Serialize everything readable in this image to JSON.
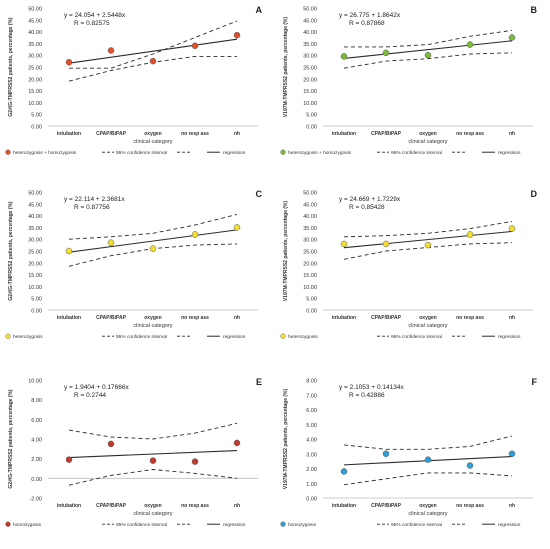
{
  "figure": {
    "x_axis_title": "clinical category",
    "categories": [
      "intubation",
      "CPAP/BiPAP",
      "oxygen",
      "no resp ass",
      "nh"
    ],
    "legend": {
      "ci": "95% confidence interval",
      "regression": "regression"
    },
    "colors": {
      "marker_edge": "#555555",
      "regression": "#2b2b2b",
      "ci": "#2b2b2b"
    }
  },
  "chart_data": [
    {
      "type": "scatter",
      "panel": "A",
      "equation": "y = 24.054 + 2.5448x",
      "r_text": "R = 0.82575",
      "ylabel": "G2#/G-TMPRSS2 patients, percentage (%)",
      "xlabel": "clinical category",
      "categories": [
        "intubation",
        "CPAP/BiPAP",
        "oxygen",
        "no resp ass",
        "nh"
      ],
      "ylim": [
        0,
        50
      ],
      "yticks": [
        "0.00",
        "5.00",
        "10.00",
        "15.00",
        "20.00",
        "25.00",
        "30.00",
        "35.00",
        "40.00",
        "45.00",
        "50.00"
      ],
      "values": [
        27.0,
        32.0,
        27.5,
        34.0,
        38.5
      ],
      "regression": {
        "intercept": 24.054,
        "slope": 2.5448
      },
      "ci_upper": [
        24.5,
        24.5,
        30.5,
        37.5,
        44.5
      ],
      "ci_lower": [
        19.0,
        23.5,
        27.0,
        29.5,
        29.5
      ],
      "series_name": "heterozygosis + homozygosis",
      "marker_color": "#e0502a",
      "legend_position": "bottom"
    },
    {
      "type": "scatter",
      "panel": "B",
      "equation": "y = 26.775 + 1.8642x",
      "r_text": "R = 0.87868",
      "ylabel": "V197M-TMPRSS2 patients, percentage (%)",
      "xlabel": "clinical category",
      "categories": [
        "intubation",
        "CPAP/BiPAP",
        "oxygen",
        "no resp ass",
        "nh"
      ],
      "ylim": [
        0,
        50
      ],
      "yticks": [
        "0.00",
        "5.00",
        "10.00",
        "15.00",
        "20.00",
        "25.00",
        "30.00",
        "35.00",
        "40.00",
        "45.00",
        "50.00"
      ],
      "values": [
        29.5,
        31.0,
        30.0,
        34.5,
        37.5
      ],
      "regression": {
        "intercept": 26.775,
        "slope": 1.8642
      },
      "ci_upper": [
        33.5,
        33.5,
        34.5,
        38.0,
        40.5
      ],
      "ci_lower": [
        24.5,
        27.5,
        28.5,
        30.5,
        31.0
      ],
      "series_name": "heterozygosis + homozygosis",
      "marker_color": "#7dba3a",
      "legend_position": "bottom"
    },
    {
      "type": "scatter",
      "panel": "C",
      "equation": "y = 22.114 + 2.3681x",
      "r_text": "R = 0.87756",
      "ylabel": "G2#/G-TMPRSS2 patients, percentage (%)",
      "xlabel": "clinical category",
      "categories": [
        "intubation",
        "CPAP/BiPAP",
        "oxygen",
        "no resp ass",
        "nh"
      ],
      "ylim": [
        0,
        50
      ],
      "yticks": [
        "0.00",
        "5.00",
        "10.00",
        "15.00",
        "20.00",
        "25.00",
        "30.00",
        "35.00",
        "40.00",
        "45.00",
        "50.00"
      ],
      "values": [
        25.0,
        28.5,
        26.0,
        32.0,
        35.0
      ],
      "regression": {
        "intercept": 22.114,
        "slope": 2.3681
      },
      "ci_upper": [
        30.0,
        31.0,
        32.5,
        36.0,
        40.5
      ],
      "ci_lower": [
        18.5,
        23.0,
        26.0,
        27.5,
        28.0
      ],
      "series_name": "heterozygosis",
      "marker_color": "#f2e033",
      "legend_position": "bottom"
    },
    {
      "type": "scatter",
      "panel": "D",
      "equation": "y = 24.669 + 1.7229x",
      "r_text": "R = 0.85428",
      "ylabel": "V197M-TMPRSS2 patients, percentage (%)",
      "xlabel": "clinical category",
      "categories": [
        "intubation",
        "CPAP/BiPAP",
        "oxygen",
        "no resp ass",
        "nh"
      ],
      "ylim": [
        0,
        50
      ],
      "yticks": [
        "0.00",
        "5.00",
        "10.00",
        "15.00",
        "20.00",
        "25.00",
        "30.00",
        "35.00",
        "40.00",
        "45.00",
        "50.00"
      ],
      "values": [
        28.0,
        28.0,
        27.5,
        32.0,
        34.5
      ],
      "regression": {
        "intercept": 24.669,
        "slope": 1.7229
      },
      "ci_upper": [
        31.0,
        31.5,
        32.5,
        34.5,
        37.5
      ],
      "ci_lower": [
        21.5,
        25.0,
        26.5,
        28.0,
        28.5
      ],
      "series_name": "heterozygosis",
      "marker_color": "#f2e033",
      "legend_position": "bottom"
    },
    {
      "type": "scatter",
      "panel": "E",
      "equation": "y = 1.9404 + 0.17666x",
      "r_text": "R = 0.2744",
      "ylabel": "G2#/G-TMPRSS2 patients, percentage (%)",
      "xlabel": "clinical category",
      "categories": [
        "intubation",
        "CPAP/BiPAP",
        "oxygen",
        "no resp ass",
        "nh"
      ],
      "ylim": [
        -2,
        10
      ],
      "yticks": [
        "-2.00",
        "0.00",
        "2.00",
        "4.00",
        "6.00",
        "8.00",
        "10.00"
      ],
      "values": [
        1.9,
        3.5,
        1.8,
        1.7,
        3.6
      ],
      "regression": {
        "intercept": 1.9404,
        "slope": 0.17666
      },
      "ci_upper": [
        4.9,
        4.2,
        4.0,
        4.6,
        5.6
      ],
      "ci_lower": [
        -0.7,
        0.3,
        0.9,
        0.5,
        0.0
      ],
      "series_name": "homozygosis",
      "marker_color": "#c0392b",
      "legend_position": "bottom"
    },
    {
      "type": "scatter",
      "panel": "F",
      "equation": "y = 2.1053 + 0.14134x",
      "r_text": "R = 0.42886",
      "ylabel": "V197M-TMPRSS2 patients, percentage (%)",
      "xlabel": "clinical category",
      "categories": [
        "intubation",
        "CPAP/BiPAP",
        "oxygen",
        "no resp ass",
        "nh"
      ],
      "ylim": [
        0,
        8
      ],
      "yticks": [
        "0.00",
        "1.00",
        "2.00",
        "3.00",
        "4.00",
        "5.00",
        "6.00",
        "7.00",
        "8.00"
      ],
      "values": [
        1.8,
        3.0,
        2.6,
        2.2,
        3.0
      ],
      "regression": {
        "intercept": 2.1053,
        "slope": 0.14134
      },
      "ci_upper": [
        3.6,
        3.3,
        3.3,
        3.5,
        4.2
      ],
      "ci_lower": [
        0.9,
        1.3,
        1.7,
        1.7,
        1.5
      ],
      "series_name": "homozygosis",
      "marker_color": "#2b9fd8",
      "legend_position": "bottom"
    }
  ]
}
